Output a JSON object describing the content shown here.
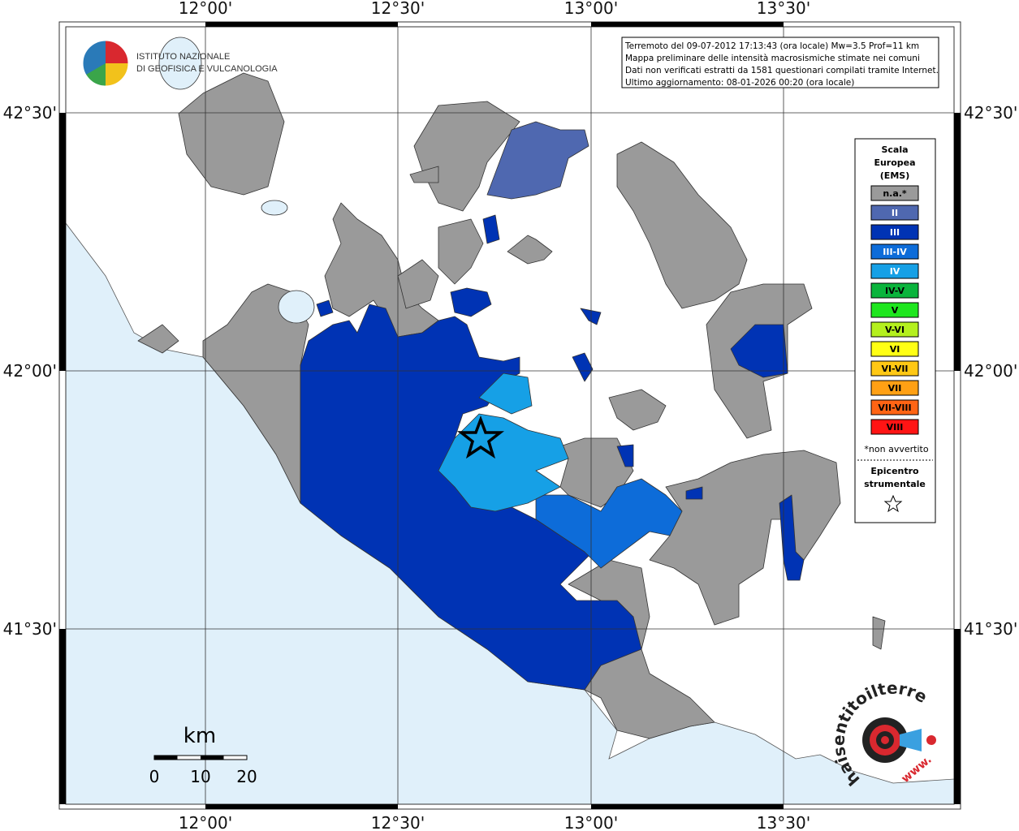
{
  "header": {
    "lines": [
      "Terremoto del 09-07-2012 17:13:43 (ora locale) Mw=3.5 Prof=11 km",
      "Mappa preliminare delle intensità macrosismiche stimate nei comuni",
      "Dati non verificati estratti da 1581 questionari compilati tramite Internet.",
      "Ultimo aggiornamento: 08-01-2026 00:20 (ora locale)"
    ]
  },
  "logo_ingv": {
    "lines": [
      "ISTITUTO NAZIONALE",
      "DI GEOFISICA E VULCANOLOGIA"
    ]
  },
  "axes": {
    "top": [
      "12°00'",
      "12°30'",
      "13°00'",
      "13°30'"
    ],
    "bottom": [
      "12°00'",
      "12°30'",
      "13°00'",
      "13°30'"
    ],
    "left": [
      "42°30'",
      "42°00'",
      "41°30'"
    ],
    "right": [
      "42°30'",
      "42°00'",
      "41°30'"
    ]
  },
  "legend": {
    "title": [
      "Scala",
      "Europea",
      "(EMS)"
    ],
    "items": [
      {
        "label": "n.a.*",
        "color": "#9a9a9a"
      },
      {
        "label": "II",
        "color": "#4f68b0"
      },
      {
        "label": "III",
        "color": "#0033b4"
      },
      {
        "label": "III-IV",
        "color": "#0d6cd9"
      },
      {
        "label": "IV",
        "color": "#16a0e6"
      },
      {
        "label": "IV-V",
        "color": "#0ab43c"
      },
      {
        "label": "V",
        "color": "#1ee61e"
      },
      {
        "label": "V-VI",
        "color": "#b4f01e"
      },
      {
        "label": "VI",
        "color": "#ffff14"
      },
      {
        "label": "VI-VII",
        "color": "#ffc814"
      },
      {
        "label": "VII",
        "color": "#ffa014"
      },
      {
        "label": "VII-VIII",
        "color": "#ff6414"
      },
      {
        "label": "VIII",
        "color": "#ff1414"
      }
    ],
    "note": "*non avvertito",
    "epicenter": [
      "Epicentro",
      "strumentale"
    ]
  },
  "scale_bar": {
    "unit": "km",
    "labels": [
      "0",
      "10",
      "20"
    ]
  },
  "logo_hsit": {
    "text": "haisentitoilterremoto.it",
    "www": "www."
  }
}
